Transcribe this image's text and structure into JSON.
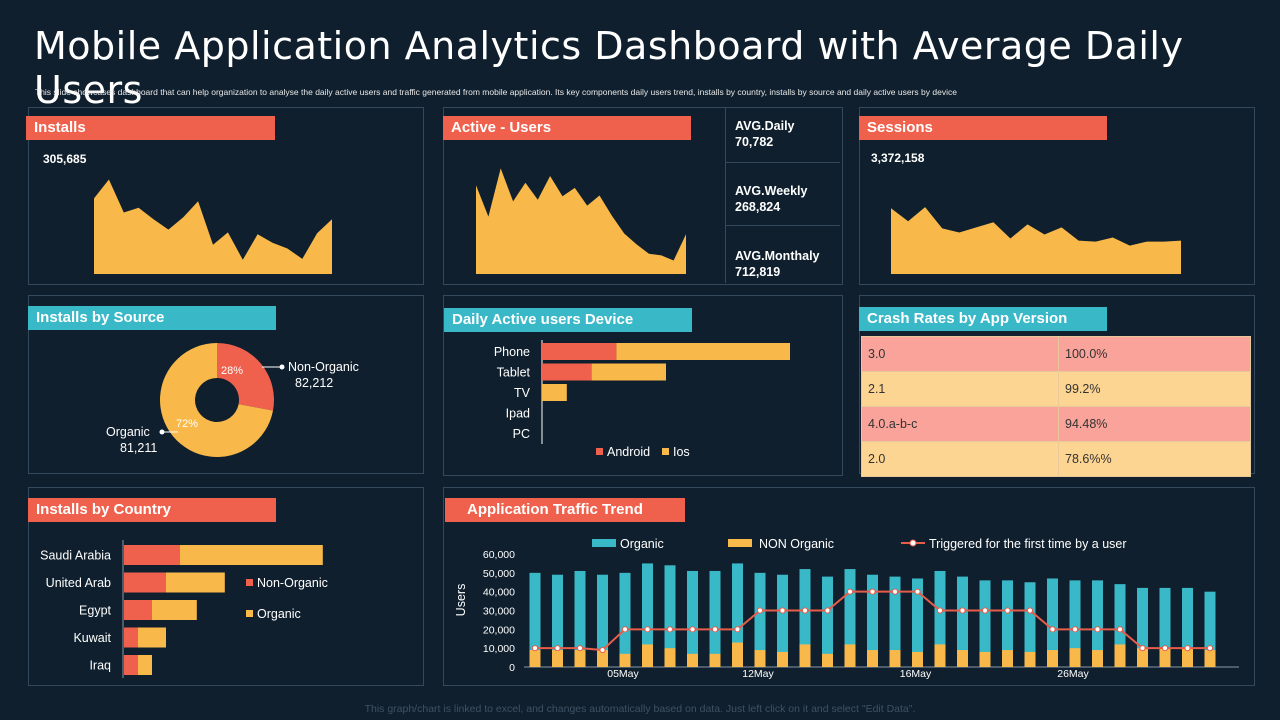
{
  "title": "Mobile Application Analytics Dashboard with Average Daily Users",
  "subtitle": "This slide showcases dashboard that can help organization  to analyse the daily active users and traffic generated from mobile application. Its key components daily users trend, installs by country, installs by source and daily active users by device",
  "installs": {
    "label": "Installs",
    "value": "305,685"
  },
  "active_users": {
    "label": "Active - Users",
    "avg_daily_label": "AVG.Daily",
    "avg_daily_value": "70,782",
    "avg_weekly_label": "AVG.Weekly",
    "avg_weekly_value": "268,824",
    "avg_monthly_label": "AVG.Monthaly",
    "avg_monthly_value": "712,819"
  },
  "sessions": {
    "label": "Sessions",
    "value": "3,372,158"
  },
  "installs_by_source": {
    "label": "Installs by Source",
    "non_organic_label": "Non-Organic",
    "non_organic_value": "82,212",
    "non_organic_pct": "28%",
    "organic_label": "Organic",
    "organic_value": "81,211",
    "organic_pct": "72%"
  },
  "daily_active_device": {
    "label": "Daily Active users Device",
    "legend_android": "Android",
    "legend_ios": "Ios"
  },
  "crash_rates": {
    "label": "Crash Rates by App Version",
    "rows": [
      {
        "version": "3.0",
        "rate": "100.0%"
      },
      {
        "version": "2.1",
        "rate": "99.2%"
      },
      {
        "version": "4.0.a-b-c",
        "rate": "94.48%"
      },
      {
        "version": "2.0",
        "rate": "78.6%%"
      }
    ]
  },
  "installs_by_country": {
    "label": "Installs by Country",
    "legend_non_organic": "Non-Organic",
    "legend_organic": "Organic"
  },
  "traffic_trend": {
    "label": "Application Traffic Trend",
    "legend_organic": "Organic",
    "legend_non_organic": "NON Organic",
    "legend_triggered": "Triggered for the first time by a user",
    "ylabel": "Users"
  },
  "footer": "This graph/chart is linked to excel, and changes automatically based on data. Just left click on it and select \"Edit Data\".",
  "colors": {
    "red": "#f0614d",
    "orange": "#f8b94a",
    "teal": "#39b8c8",
    "bg": "#0f1f2d",
    "border": "#34495c",
    "crash_pink": "#f9a39a",
    "crash_peach": "#fdd592"
  },
  "chart_data": [
    {
      "type": "area",
      "title": "Installs",
      "values": [
        8,
        10,
        6.5,
        7,
        5.8,
        4.7,
        6,
        7.7,
        3.1,
        4.4,
        1.5,
        4.2,
        3.3,
        2.7,
        1.6,
        4.3,
        5.8
      ]
    },
    {
      "type": "area",
      "title": "Active - Users",
      "values": [
        10.5,
        6.8,
        12.5,
        8.6,
        10.8,
        8.8,
        11.6,
        9.2,
        10.2,
        8.1,
        9.3,
        6.9,
        4.8,
        3.5,
        2.4,
        2.2,
        1.6,
        4.7
      ]
    },
    {
      "type": "area",
      "title": "Sessions",
      "values": [
        6.5,
        5.2,
        6.6,
        4.5,
        4.1,
        4.6,
        5.1,
        3.5,
        4.9,
        3.9,
        4.6,
        3.3,
        3.2,
        3.6,
        2.8,
        3.2,
        3.2,
        3.3
      ]
    },
    {
      "type": "pie",
      "title": "Installs by Source",
      "categories": [
        "Non-Organic",
        "Organic"
      ],
      "values": [
        28,
        72
      ]
    },
    {
      "type": "bar",
      "title": "Daily Active users Device",
      "categories": [
        "Phone",
        "Tablet",
        "TV",
        "Ipad",
        "PC"
      ],
      "series": [
        {
          "name": "Android",
          "values": [
            30,
            20,
            0,
            0,
            0
          ]
        },
        {
          "name": "Ios",
          "values": [
            70,
            30,
            10,
            0,
            0
          ]
        }
      ]
    },
    {
      "type": "bar",
      "title": "Installs by Country",
      "categories": [
        "Saudi Arabia",
        "United Arab",
        "Egypt",
        "Kuwait",
        "Iraq"
      ],
      "series": [
        {
          "name": "Non-Organic",
          "values": [
            20,
            15,
            10,
            5,
            5
          ]
        },
        {
          "name": "Organic",
          "values": [
            51,
            21,
            16,
            10,
            5
          ]
        }
      ]
    },
    {
      "type": "bar",
      "title": "Application Traffic Trend",
      "ylabel": "Users",
      "ylim": [
        0,
        60000
      ],
      "yticks": [
        "0",
        "10,000",
        "20,000",
        "30,000",
        "40,000",
        "50,000",
        "60,000"
      ],
      "xlabels": [
        {
          "index": 4,
          "label": "05May"
        },
        {
          "index": 10,
          "label": "12May"
        },
        {
          "index": 17,
          "label": "16May"
        },
        {
          "index": 24,
          "label": "26May"
        }
      ],
      "series": [
        {
          "name": "Organic",
          "values": [
            50000,
            49000,
            51000,
            49000,
            50000,
            55000,
            54000,
            51000,
            51000,
            55000,
            50000,
            49000,
            52000,
            48000,
            52000,
            49000,
            48000,
            47000,
            51000,
            48000,
            46000,
            46000,
            45000,
            47000,
            46000,
            46000,
            44000,
            42000,
            42000,
            42000,
            40000
          ]
        },
        {
          "name": "NON Organic",
          "values": [
            9000,
            9000,
            9000,
            9000,
            7000,
            12000,
            10000,
            7000,
            7000,
            13000,
            9000,
            8000,
            12000,
            7000,
            12000,
            9000,
            9000,
            8000,
            12000,
            9000,
            8000,
            9000,
            8000,
            9000,
            10000,
            9000,
            12000,
            10000,
            10000,
            10000,
            9000
          ]
        },
        {
          "name": "Triggered for the first time by a user",
          "values": [
            10000,
            10000,
            10000,
            9000,
            20000,
            20000,
            20000,
            20000,
            20000,
            20000,
            30000,
            30000,
            30000,
            30000,
            40000,
            40000,
            40000,
            40000,
            30000,
            30000,
            30000,
            30000,
            30000,
            20000,
            20000,
            20000,
            20000,
            10000,
            10000,
            10000,
            10000
          ]
        }
      ]
    }
  ]
}
